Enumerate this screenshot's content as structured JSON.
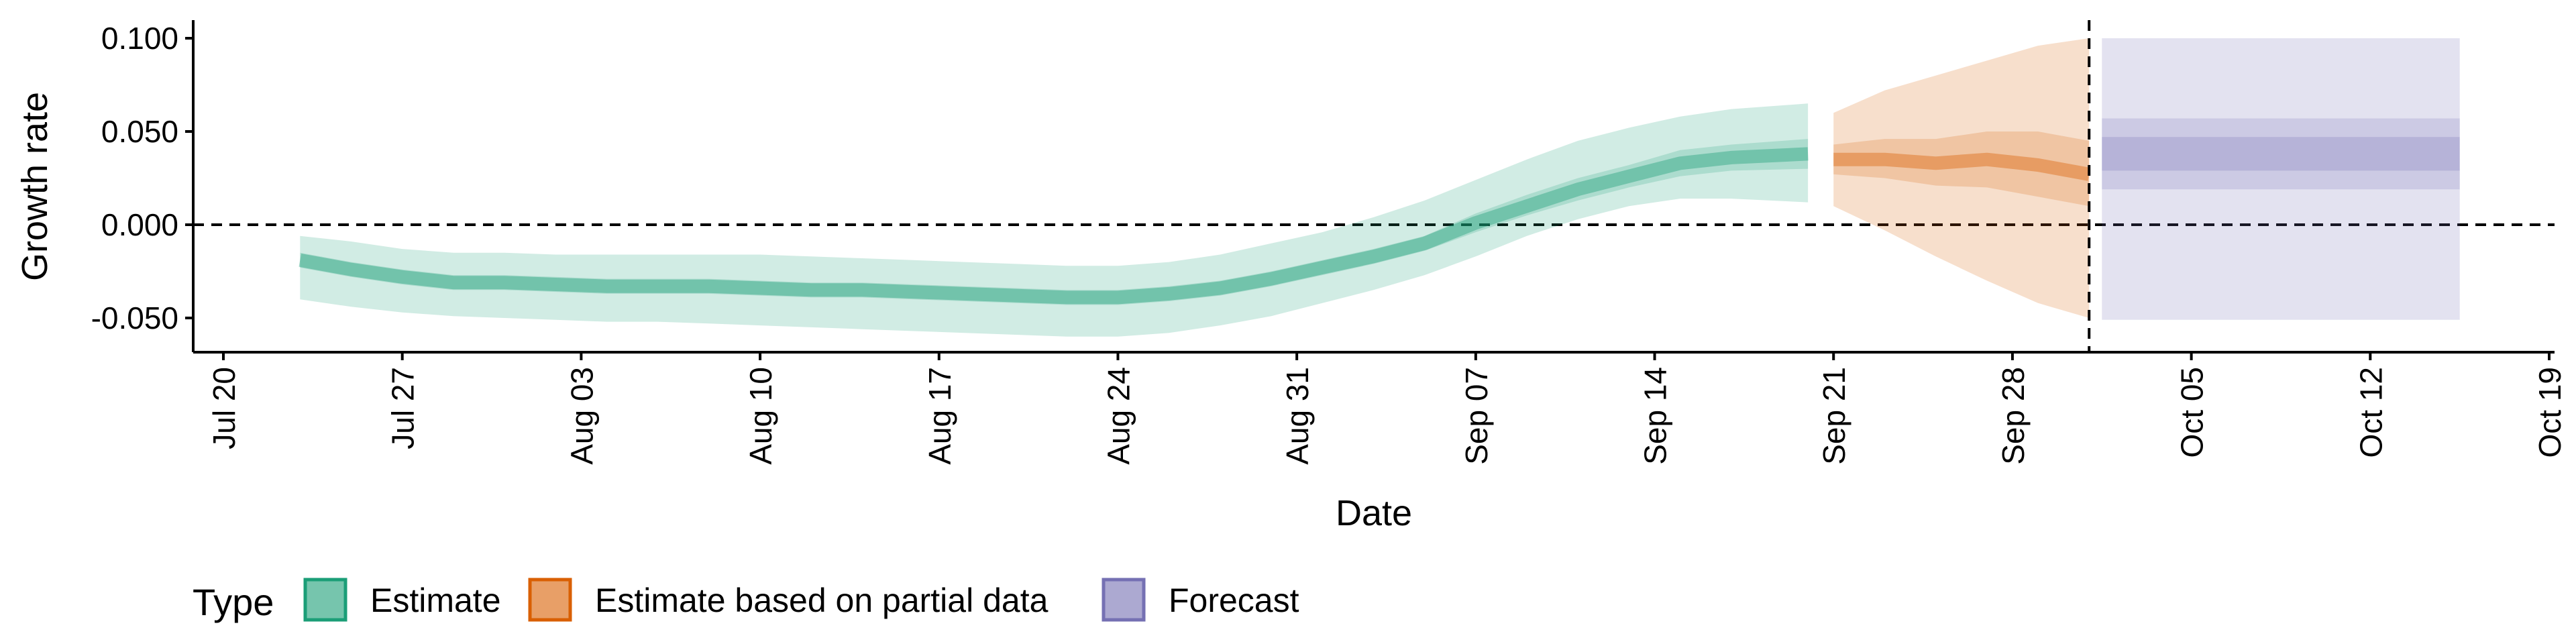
{
  "chart_data": {
    "type": "line",
    "xlabel": "Date",
    "ylabel": "Growth rate",
    "x_range": [
      "2020-07-18",
      "2020-10-19"
    ],
    "ylim": [
      -0.07,
      0.11
    ],
    "x_ticks": [
      "Jul 20",
      "Jul 27",
      "Aug 03",
      "Aug 10",
      "Aug 17",
      "Aug 24",
      "Aug 31",
      "Sep 07",
      "Sep 14",
      "Sep 21",
      "Sep 28",
      "Oct 05",
      "Oct 12",
      "Oct 19"
    ],
    "x_tick_dates": [
      "2020-07-20",
      "2020-07-27",
      "2020-08-03",
      "2020-08-10",
      "2020-08-17",
      "2020-08-24",
      "2020-08-31",
      "2020-09-07",
      "2020-09-14",
      "2020-09-21",
      "2020-09-28",
      "2020-10-05",
      "2020-10-12",
      "2020-10-19"
    ],
    "y_ticks": [
      "-0.050",
      "0.000",
      "0.050",
      "0.100"
    ],
    "y_tick_values": [
      -0.05,
      0,
      0.05,
      0.1
    ],
    "reference_lines": {
      "horizontal_y": 0,
      "vertical_date": "2020-10-01",
      "style": "dashed"
    },
    "grid": false,
    "legend": {
      "title": "Type",
      "position": "bottom-left",
      "entries": [
        "Estimate",
        "Estimate based on partial data",
        "Forecast"
      ]
    },
    "colors": {
      "Estimate": "#1b9e77",
      "Estimate based on partial data": "#d95f02",
      "Forecast": "#7570b3"
    },
    "series": [
      {
        "name": "Estimate",
        "x": [
          "2020-07-23",
          "2020-07-25",
          "2020-07-27",
          "2020-07-29",
          "2020-07-31",
          "2020-08-02",
          "2020-08-04",
          "2020-08-06",
          "2020-08-08",
          "2020-08-10",
          "2020-08-12",
          "2020-08-14",
          "2020-08-16",
          "2020-08-18",
          "2020-08-20",
          "2020-08-22",
          "2020-08-24",
          "2020-08-26",
          "2020-08-28",
          "2020-08-30",
          "2020-09-01",
          "2020-09-03",
          "2020-09-05",
          "2020-09-07",
          "2020-09-09",
          "2020-09-11",
          "2020-09-13",
          "2020-09-15",
          "2020-09-17",
          "2020-09-20"
        ],
        "median": [
          -0.019,
          -0.024,
          -0.028,
          -0.031,
          -0.031,
          -0.032,
          -0.033,
          -0.033,
          -0.033,
          -0.034,
          -0.035,
          -0.035,
          -0.036,
          -0.037,
          -0.038,
          -0.039,
          -0.039,
          -0.037,
          -0.034,
          -0.029,
          -0.023,
          -0.017,
          -0.01,
          0.001,
          0.01,
          0.019,
          0.026,
          0.033,
          0.036,
          0.038
        ],
        "inner_lower": [
          -0.023,
          -0.028,
          -0.032,
          -0.035,
          -0.035,
          -0.036,
          -0.037,
          -0.037,
          -0.037,
          -0.038,
          -0.039,
          -0.039,
          -0.04,
          -0.041,
          -0.042,
          -0.043,
          -0.043,
          -0.041,
          -0.038,
          -0.033,
          -0.027,
          -0.021,
          -0.014,
          -0.004,
          0.005,
          0.013,
          0.02,
          0.026,
          0.029,
          0.03
        ],
        "inner_upper": [
          -0.015,
          -0.02,
          -0.024,
          -0.027,
          -0.027,
          -0.028,
          -0.029,
          -0.029,
          -0.029,
          -0.03,
          -0.031,
          -0.031,
          -0.032,
          -0.033,
          -0.034,
          -0.035,
          -0.035,
          -0.033,
          -0.03,
          -0.025,
          -0.019,
          -0.013,
          -0.006,
          0.006,
          0.016,
          0.025,
          0.032,
          0.04,
          0.043,
          0.046
        ],
        "outer_lower": [
          -0.04,
          -0.044,
          -0.047,
          -0.049,
          -0.05,
          -0.051,
          -0.052,
          -0.052,
          -0.053,
          -0.054,
          -0.055,
          -0.056,
          -0.057,
          -0.058,
          -0.059,
          -0.06,
          -0.06,
          -0.058,
          -0.054,
          -0.049,
          -0.042,
          -0.035,
          -0.027,
          -0.017,
          -0.006,
          0.003,
          0.01,
          0.014,
          0.014,
          0.012
        ],
        "outer_upper": [
          -0.006,
          -0.009,
          -0.013,
          -0.015,
          -0.015,
          -0.016,
          -0.016,
          -0.016,
          -0.016,
          -0.016,
          -0.017,
          -0.018,
          -0.019,
          -0.02,
          -0.021,
          -0.022,
          -0.022,
          -0.02,
          -0.016,
          -0.01,
          -0.004,
          0.004,
          0.013,
          0.024,
          0.035,
          0.045,
          0.052,
          0.058,
          0.062,
          0.065
        ]
      },
      {
        "name": "Estimate based on partial data",
        "x": [
          "2020-09-21",
          "2020-09-23",
          "2020-09-25",
          "2020-09-27",
          "2020-09-29",
          "2020-10-01"
        ],
        "median": [
          0.035,
          0.035,
          0.033,
          0.035,
          0.032,
          0.027
        ],
        "inner_lower": [
          0.027,
          0.025,
          0.021,
          0.02,
          0.015,
          0.01
        ],
        "inner_upper": [
          0.043,
          0.046,
          0.046,
          0.05,
          0.05,
          0.045
        ],
        "outer_lower": [
          0.01,
          -0.003,
          -0.017,
          -0.03,
          -0.042,
          -0.05
        ],
        "outer_upper": [
          0.06,
          0.072,
          0.08,
          0.088,
          0.096,
          0.1
        ]
      },
      {
        "name": "Forecast",
        "x": [
          "2020-10-02",
          "2020-10-15"
        ],
        "median": [
          0.038,
          0.038
        ],
        "inner_lower": [
          0.019,
          0.019
        ],
        "inner_upper": [
          0.057,
          0.057
        ],
        "outer_lower": [
          -0.051,
          -0.051
        ],
        "outer_upper": [
          0.1,
          0.1
        ]
      }
    ]
  }
}
